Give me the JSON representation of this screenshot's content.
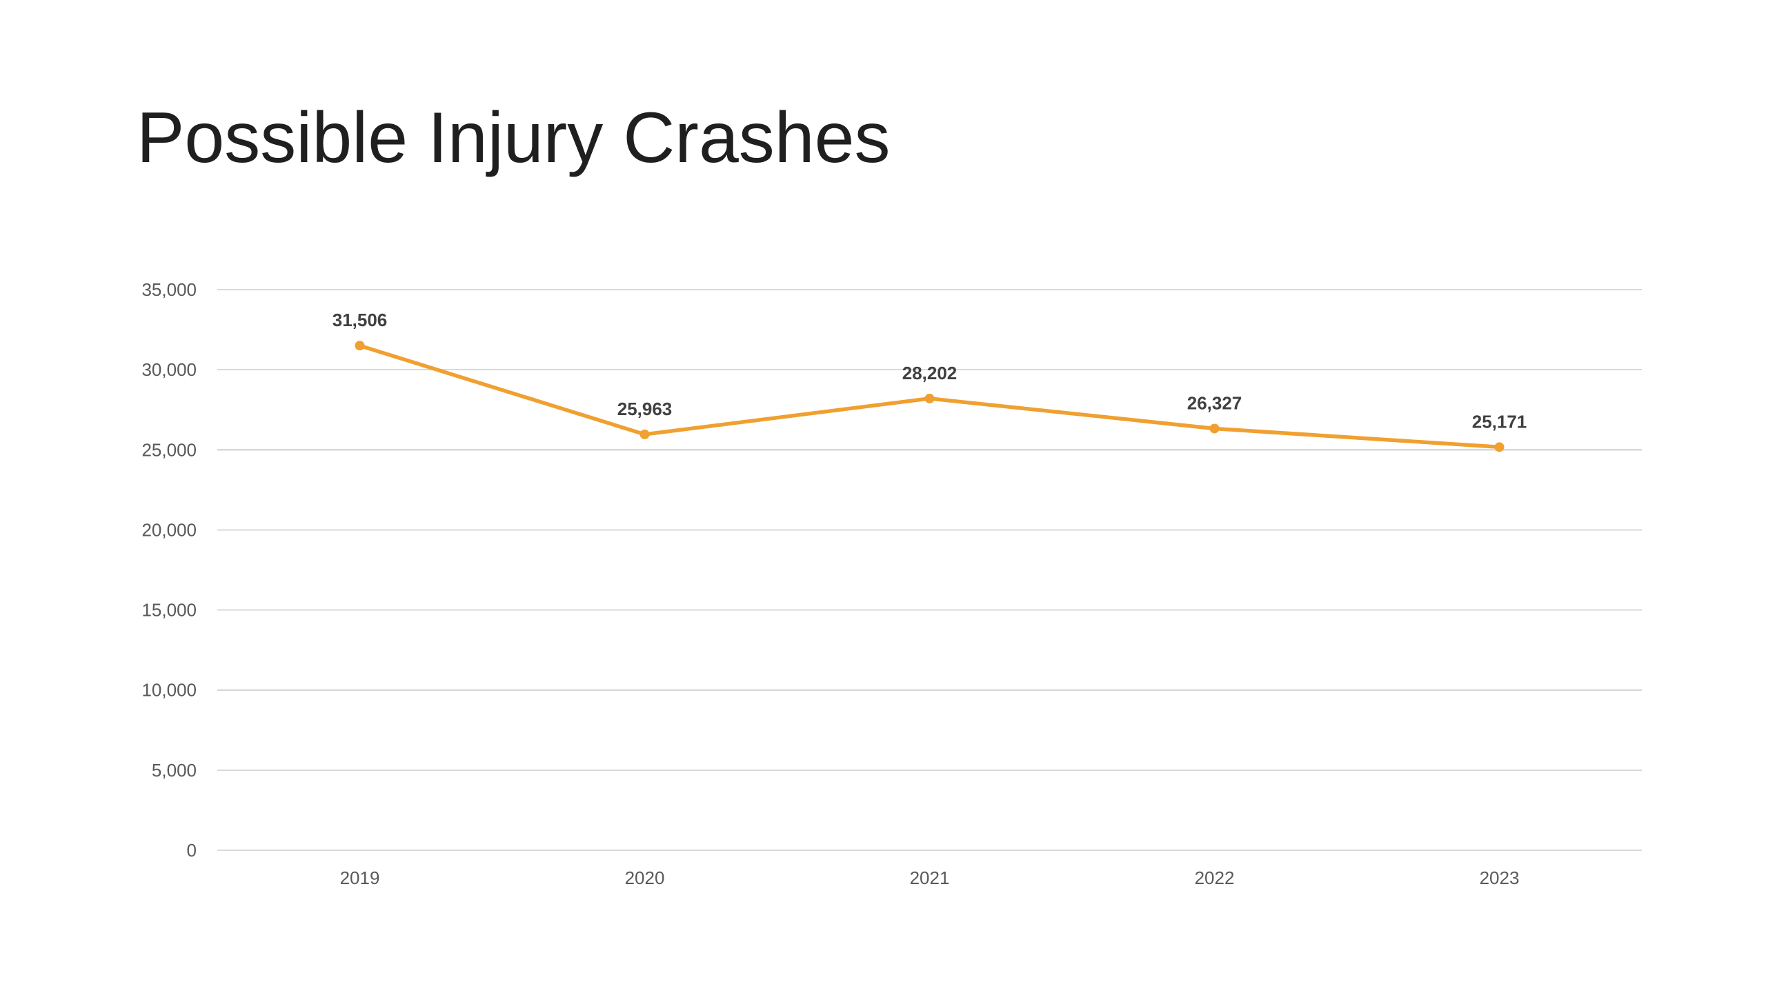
{
  "slide": {
    "title": "Possible Injury Crashes"
  },
  "chart_data": {
    "type": "line",
    "categories": [
      "2019",
      "2020",
      "2021",
      "2022",
      "2023"
    ],
    "series": [
      {
        "values": [
          31506,
          25963,
          28202,
          26327,
          25171
        ],
        "data_labels": [
          "31,506",
          "25,963",
          "28,202",
          "26,327",
          "25,171"
        ],
        "color": "#f0a030"
      }
    ],
    "ylim": [
      0,
      35000
    ],
    "yticks": [
      0,
      5000,
      10000,
      15000,
      20000,
      25000,
      30000,
      35000
    ],
    "ytick_labels": [
      "0",
      "5,000",
      "10,000",
      "15,000",
      "20,000",
      "25,000",
      "30,000",
      "35,000"
    ],
    "grid": true,
    "legend": "none",
    "xlabel": "",
    "ylabel": ""
  },
  "colors": {
    "background": "#ffffff",
    "gridline": "#d9d9d9",
    "tick_text": "#595959",
    "data_label_text": "#404040",
    "series": "#f0a030"
  }
}
